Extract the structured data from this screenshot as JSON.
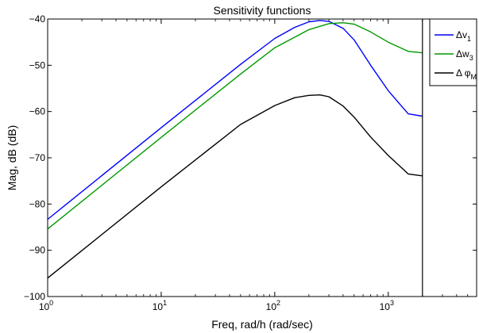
{
  "chart_data": {
    "type": "line",
    "title": "Sensitivity functions",
    "xlabel": "Freq, rad/h  (rad/sec)",
    "ylabel": "Mag, dB (dB)",
    "xscale": "log",
    "xlim": [
      1,
      6000
    ],
    "ylim": [
      -100,
      -40
    ],
    "x_ticks": [
      1,
      10,
      100,
      1000
    ],
    "x_tick_labels": [
      {
        "base": "10",
        "exp": "0"
      },
      {
        "base": "10",
        "exp": "1"
      },
      {
        "base": "10",
        "exp": "2"
      },
      {
        "base": "10",
        "exp": "3"
      }
    ],
    "y_ticks": [
      -100,
      -90,
      -80,
      -70,
      -60,
      -50,
      -40
    ],
    "y_tick_labels": [
      "−100",
      "−90",
      "−80",
      "−70",
      "−60",
      "−50",
      "−40"
    ],
    "grid": false,
    "legend_position": "top-right",
    "series": [
      {
        "name": "Δv1",
        "label_base": "Δv",
        "label_sub": "1",
        "color": "#0000ff",
        "x": [
          1,
          10,
          50,
          100,
          150,
          200,
          250,
          300,
          400,
          500,
          700,
          1000,
          1500,
          2000
        ],
        "y": [
          -83.3,
          -63.5,
          -49.8,
          -44.2,
          -41.8,
          -40.6,
          -40.3,
          -40.5,
          -42.0,
          -44.5,
          -50.0,
          -55.5,
          -60.5,
          -61.0
        ]
      },
      {
        "name": "Δw3",
        "label_base": "Δw",
        "label_sub": "3",
        "color": "#009900",
        "x": [
          1,
          10,
          50,
          100,
          200,
          300,
          400,
          500,
          700,
          1000,
          1500,
          2000
        ],
        "y": [
          -85.4,
          -65.6,
          -51.9,
          -46.2,
          -42.3,
          -41.0,
          -40.8,
          -41.1,
          -42.8,
          -45.0,
          -47.0,
          -47.3
        ]
      },
      {
        "name": "Δ φM",
        "label_base": "Δ φ",
        "label_sub": "M",
        "color": "#000000",
        "x": [
          1,
          10,
          50,
          100,
          150,
          200,
          250,
          300,
          400,
          500,
          700,
          1000,
          1500,
          2000
        ],
        "y": [
          -96.0,
          -76.3,
          -62.8,
          -58.7,
          -57.0,
          -56.5,
          -56.4,
          -56.8,
          -58.8,
          -61.2,
          -65.5,
          -69.5,
          -73.5,
          -73.9
        ]
      }
    ],
    "vertical_marker_x": 2000
  }
}
